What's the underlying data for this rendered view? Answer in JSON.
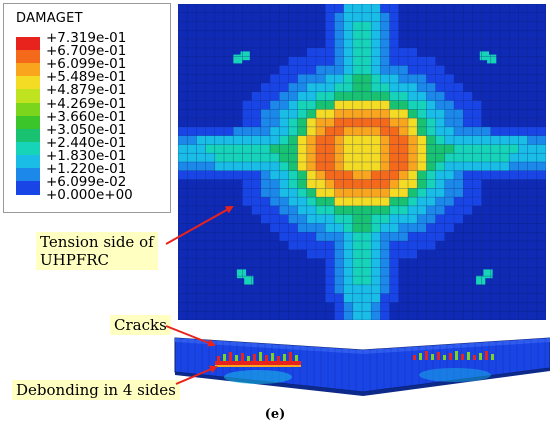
{
  "legend": {
    "title": "DAMAGET",
    "entries": [
      {
        "label": "+7.319e-01",
        "color": "#e8231d"
      },
      {
        "label": "+6.709e-01",
        "color": "#f46a1a"
      },
      {
        "label": "+6.099e-01",
        "color": "#f9a51d"
      },
      {
        "label": "+5.489e-01",
        "color": "#f3dc23"
      },
      {
        "label": "+4.879e-01",
        "color": "#bfe31f"
      },
      {
        "label": "+4.269e-01",
        "color": "#7bd51c"
      },
      {
        "label": "+3.660e-01",
        "color": "#3bc52a"
      },
      {
        "label": "+3.050e-01",
        "color": "#19c271"
      },
      {
        "label": "+2.440e-01",
        "color": "#17d3b8"
      },
      {
        "label": "+1.830e-01",
        "color": "#19bde6"
      },
      {
        "label": "+1.220e-01",
        "color": "#1c88ea"
      },
      {
        "label": "+6.099e-02",
        "color": "#1a45e6"
      },
      {
        "label": "+0.000e+00",
        "color": "#0f2ab5"
      }
    ]
  },
  "callouts": {
    "tension_line1": "Tension side of",
    "tension_line2": "UHPFRC",
    "cracks": "Cracks",
    "debonding": "Debonding in 4 sides"
  },
  "colors": {
    "arrow": "#e8231d",
    "callout_bg": "#ffffc2",
    "mesh_line": "#0a1e6e"
  },
  "caption": "(e)"
}
